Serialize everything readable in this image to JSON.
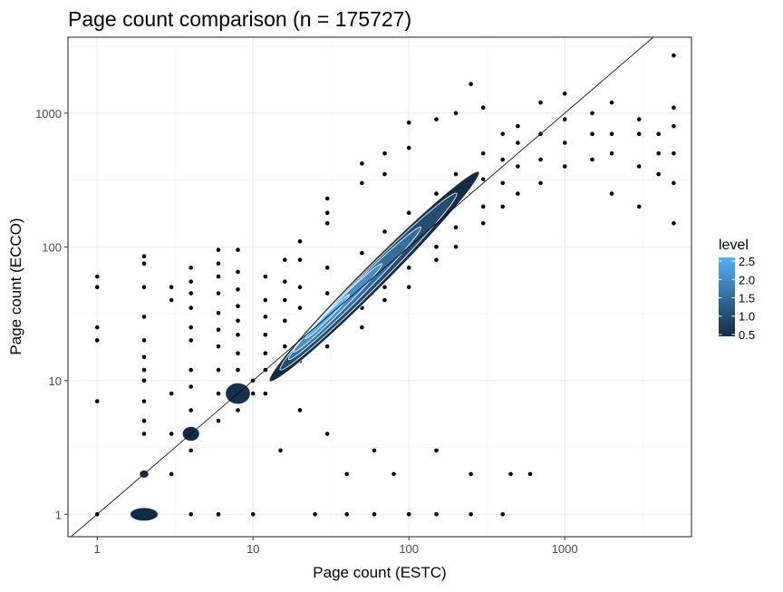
{
  "chart_data": {
    "type": "scatter",
    "title": "Page count comparison (n = 175727)",
    "xlabel": "Page count (ESTC)",
    "ylabel": "Page count (ECCO)",
    "x_scale": "log10",
    "y_scale": "log10",
    "xlim": [
      0.65,
      6500
    ],
    "ylim": [
      0.68,
      3700
    ],
    "x_ticks": [
      1,
      10,
      100,
      1000
    ],
    "x_tick_labels": [
      "1",
      "10",
      "100",
      "1000"
    ],
    "y_ticks": [
      1,
      10,
      100,
      1000
    ],
    "y_tick_labels": [
      "1",
      "10",
      "100",
      "1000"
    ],
    "grid": true,
    "reference_line": "y = x",
    "legend": {
      "title": "level",
      "placement": "right",
      "values": [
        2.5,
        2.0,
        1.5,
        1.0,
        0.5
      ],
      "labels": [
        "2.5",
        "2.0",
        "1.5",
        "1.0",
        "0.5"
      ],
      "low_color": "#132B43",
      "high_color": "#56B1F7"
    },
    "points": [
      [
        1,
        1
      ],
      [
        1,
        7
      ],
      [
        1,
        20
      ],
      [
        1,
        25
      ],
      [
        1,
        50
      ],
      [
        1,
        60
      ],
      [
        2,
        2
      ],
      [
        2,
        4
      ],
      [
        2,
        5
      ],
      [
        2,
        7
      ],
      [
        2,
        10
      ],
      [
        2,
        12
      ],
      [
        2,
        15
      ],
      [
        2,
        20
      ],
      [
        2,
        30
      ],
      [
        2,
        50
      ],
      [
        2,
        75
      ],
      [
        2,
        85
      ],
      [
        3,
        2
      ],
      [
        3,
        4
      ],
      [
        3,
        8
      ],
      [
        3,
        40
      ],
      [
        3,
        50
      ],
      [
        4,
        3
      ],
      [
        4,
        6
      ],
      [
        4,
        9
      ],
      [
        4,
        12
      ],
      [
        4,
        20
      ],
      [
        4,
        25
      ],
      [
        4,
        35
      ],
      [
        4,
        45
      ],
      [
        4,
        55
      ],
      [
        4,
        70
      ],
      [
        6,
        5
      ],
      [
        6,
        8
      ],
      [
        6,
        12
      ],
      [
        6,
        18
      ],
      [
        6,
        24
      ],
      [
        6,
        32
      ],
      [
        6,
        45
      ],
      [
        6,
        60
      ],
      [
        6,
        75
      ],
      [
        6,
        95
      ],
      [
        8,
        6
      ],
      [
        8,
        9
      ],
      [
        8,
        12
      ],
      [
        8,
        16
      ],
      [
        8,
        22
      ],
      [
        8,
        28
      ],
      [
        8,
        36
      ],
      [
        8,
        48
      ],
      [
        8,
        65
      ],
      [
        8,
        95
      ],
      [
        12,
        8
      ],
      [
        12,
        12
      ],
      [
        12,
        16
      ],
      [
        12,
        22
      ],
      [
        12,
        30
      ],
      [
        12,
        40
      ],
      [
        12,
        60
      ],
      [
        16,
        12
      ],
      [
        16,
        18
      ],
      [
        16,
        28
      ],
      [
        16,
        40
      ],
      [
        16,
        55
      ],
      [
        16,
        80
      ],
      [
        20,
        14
      ],
      [
        20,
        20
      ],
      [
        20,
        35
      ],
      [
        20,
        50
      ],
      [
        20,
        80
      ],
      [
        20,
        110
      ],
      [
        30,
        18
      ],
      [
        30,
        25
      ],
      [
        30,
        45
      ],
      [
        30,
        70
      ],
      [
        30,
        150
      ],
      [
        30,
        180
      ],
      [
        30,
        230
      ],
      [
        50,
        25
      ],
      [
        50,
        35
      ],
      [
        50,
        60
      ],
      [
        50,
        90
      ],
      [
        50,
        300
      ],
      [
        50,
        420
      ],
      [
        70,
        40
      ],
      [
        70,
        50
      ],
      [
        70,
        85
      ],
      [
        70,
        130
      ],
      [
        70,
        350
      ],
      [
        70,
        500
      ],
      [
        100,
        50
      ],
      [
        100,
        70
      ],
      [
        100,
        120
      ],
      [
        100,
        180
      ],
      [
        100,
        550
      ],
      [
        100,
        850
      ],
      [
        150,
        80
      ],
      [
        150,
        100
      ],
      [
        150,
        160
      ],
      [
        150,
        250
      ],
      [
        150,
        900
      ],
      [
        200,
        100
      ],
      [
        200,
        140
      ],
      [
        200,
        220
      ],
      [
        200,
        350
      ],
      [
        200,
        1000
      ],
      [
        250,
        1650
      ],
      [
        300,
        150
      ],
      [
        300,
        200
      ],
      [
        300,
        320
      ],
      [
        300,
        500
      ],
      [
        300,
        1100
      ],
      [
        400,
        200
      ],
      [
        400,
        300
      ],
      [
        400,
        450
      ],
      [
        400,
        700
      ],
      [
        500,
        250
      ],
      [
        500,
        400
      ],
      [
        500,
        600
      ],
      [
        500,
        800
      ],
      [
        700,
        300
      ],
      [
        700,
        450
      ],
      [
        700,
        700
      ],
      [
        700,
        1200
      ],
      [
        1000,
        400
      ],
      [
        1000,
        600
      ],
      [
        1000,
        900
      ],
      [
        1000,
        1400
      ],
      [
        1500,
        450
      ],
      [
        1500,
        700
      ],
      [
        1500,
        1000
      ],
      [
        2000,
        250
      ],
      [
        2000,
        500
      ],
      [
        2000,
        700
      ],
      [
        2000,
        1200
      ],
      [
        3000,
        200
      ],
      [
        3000,
        400
      ],
      [
        3000,
        700
      ],
      [
        3000,
        900
      ],
      [
        4000,
        350
      ],
      [
        4000,
        500
      ],
      [
        4000,
        700
      ],
      [
        5000,
        150
      ],
      [
        5000,
        300
      ],
      [
        5000,
        500
      ],
      [
        5000,
        800
      ],
      [
        5000,
        1100
      ],
      [
        5000,
        2700
      ],
      [
        10,
        10
      ],
      [
        10,
        8
      ],
      [
        15,
        3
      ],
      [
        20,
        6
      ],
      [
        30,
        4
      ],
      [
        40,
        2
      ],
      [
        60,
        3
      ],
      [
        80,
        2
      ],
      [
        100,
        1
      ],
      [
        150,
        3
      ],
      [
        250,
        2
      ],
      [
        450,
        2
      ],
      [
        600,
        2
      ],
      [
        25,
        1
      ],
      [
        40,
        1
      ],
      [
        60,
        1
      ],
      [
        150,
        1
      ],
      [
        250,
        1
      ],
      [
        400,
        1
      ],
      [
        10,
        1
      ],
      [
        6,
        1
      ],
      [
        4,
        1
      ]
    ],
    "density_contours": [
      {
        "level": 0.5,
        "center": [
          2,
          1
        ],
        "rx_dec": 0.09,
        "ry_dec": 0.05,
        "angle": 0
      },
      {
        "level": 0.5,
        "center": [
          2,
          2
        ],
        "rx_dec": 0.03,
        "ry_dec": 0.03,
        "angle": 0
      },
      {
        "level": 0.5,
        "center": [
          4,
          4
        ],
        "rx_dec": 0.055,
        "ry_dec": 0.055,
        "angle": 0
      },
      {
        "level": 0.6,
        "center": [
          8,
          8
        ],
        "rx_dec": 0.08,
        "ry_dec": 0.08,
        "angle": 0
      },
      {
        "level": 0.5,
        "center": [
          60,
          60
        ],
        "rx_dec": 0.95,
        "ry_dec": 0.09,
        "angle": 45
      },
      {
        "level": 1.0,
        "center": [
          55,
          55
        ],
        "rx_dec": 0.8,
        "ry_dec": 0.07,
        "angle": 45
      },
      {
        "level": 1.5,
        "center": [
          45,
          45
        ],
        "rx_dec": 0.6,
        "ry_dec": 0.05,
        "angle": 45
      },
      {
        "level": 2.0,
        "center": [
          35,
          35
        ],
        "rx_dec": 0.4,
        "ry_dec": 0.035,
        "angle": 45
      },
      {
        "level": 2.5,
        "center": [
          30,
          30
        ],
        "rx_dec": 0.2,
        "ry_dec": 0.02,
        "angle": 45
      }
    ]
  }
}
